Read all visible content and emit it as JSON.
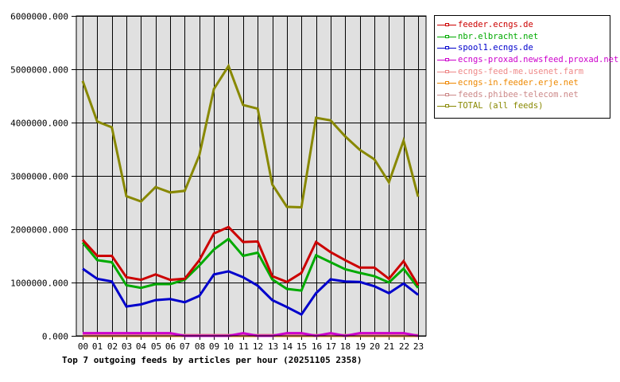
{
  "chart_data": {
    "type": "line",
    "title": "Top 7 outgoing feeds by articles per hour (20251105 2358)",
    "xlabel": "",
    "ylabel": "",
    "ylim": [
      0,
      6000000
    ],
    "grid": true,
    "legend_position": "right",
    "y_ticks": [
      "0.000",
      "1000000.000",
      "2000000.000",
      "3000000.000",
      "4000000.000",
      "5000000.000",
      "6000000.000"
    ],
    "categories": [
      "00",
      "01",
      "02",
      "03",
      "04",
      "05",
      "06",
      "07",
      "08",
      "09",
      "10",
      "11",
      "12",
      "13",
      "14",
      "15",
      "16",
      "17",
      "18",
      "19",
      "20",
      "21",
      "22",
      "23"
    ],
    "series": [
      {
        "name": "feeder.ecngs.de",
        "color": "#cc0000",
        "values": [
          1800000,
          1500000,
          1500000,
          1100000,
          1050000,
          1150000,
          1050000,
          1070000,
          1420000,
          1920000,
          2040000,
          1760000,
          1770000,
          1120000,
          1010000,
          1180000,
          1760000,
          1570000,
          1420000,
          1280000,
          1280000,
          1070000,
          1400000,
          950000
        ]
      },
      {
        "name": "nbr.elbracht.net",
        "color": "#00aa00",
        "values": [
          1750000,
          1420000,
          1380000,
          950000,
          900000,
          970000,
          970000,
          1050000,
          1320000,
          1620000,
          1820000,
          1500000,
          1560000,
          1060000,
          880000,
          850000,
          1510000,
          1380000,
          1250000,
          1180000,
          1120000,
          1000000,
          1260000,
          900000
        ]
      },
      {
        "name": "spool1.ecngs.de",
        "color": "#0000cc",
        "values": [
          1260000,
          1070000,
          1020000,
          550000,
          590000,
          670000,
          690000,
          630000,
          750000,
          1150000,
          1210000,
          1100000,
          940000,
          670000,
          540000,
          400000,
          800000,
          1060000,
          1020000,
          1010000,
          930000,
          800000,
          980000,
          770000
        ]
      },
      {
        "name": "ecngs-proxad.newsfeed.proxad.net",
        "color": "#cc00cc",
        "values": [
          50000,
          50000,
          50000,
          50000,
          50000,
          50000,
          50000,
          0,
          0,
          0,
          0,
          50000,
          0,
          0,
          50000,
          50000,
          0,
          50000,
          0,
          50000,
          50000,
          50000,
          50000,
          0
        ]
      },
      {
        "name": "ecngs-feed-me.usenet.farm",
        "color": "#ee8888",
        "values": [
          10000,
          10000,
          10000,
          10000,
          10000,
          10000,
          10000,
          10000,
          10000,
          10000,
          10000,
          10000,
          10000,
          10000,
          10000,
          10000,
          10000,
          10000,
          10000,
          10000,
          10000,
          10000,
          10000,
          10000
        ]
      },
      {
        "name": "ecngs-in.feeder.erje.net",
        "color": "#ee8800",
        "values": [
          0,
          0,
          0,
          0,
          0,
          0,
          0,
          0,
          0,
          0,
          0,
          0,
          0,
          0,
          0,
          0,
          0,
          0,
          0,
          0,
          0,
          0,
          0,
          0
        ]
      },
      {
        "name": "feeds.phibee-telecom.net",
        "color": "#cc8888",
        "values": [
          15000,
          15000,
          15000,
          15000,
          15000,
          15000,
          15000,
          15000,
          15000,
          15000,
          15000,
          15000,
          15000,
          15000,
          15000,
          15000,
          15000,
          15000,
          15000,
          15000,
          15000,
          15000,
          15000,
          15000
        ]
      },
      {
        "name": "TOTAL (all feeds)",
        "color": "#888800",
        "values": [
          4780000,
          4020000,
          3910000,
          2620000,
          2520000,
          2790000,
          2690000,
          2720000,
          3390000,
          4630000,
          5060000,
          4330000,
          4260000,
          2840000,
          2420000,
          2410000,
          4090000,
          4040000,
          3740000,
          3490000,
          3310000,
          2880000,
          3660000,
          2610000
        ]
      }
    ]
  },
  "legend": {
    "items": [
      {
        "label": "feeder.ecngs.de",
        "color": "#cc0000"
      },
      {
        "label": "nbr.elbracht.net",
        "color": "#00aa00"
      },
      {
        "label": "spool1.ecngs.de",
        "color": "#0000cc"
      },
      {
        "label": "ecngs-proxad.newsfeed.proxad.net",
        "color": "#cc00cc"
      },
      {
        "label": "ecngs-feed-me.usenet.farm",
        "color": "#ee8888"
      },
      {
        "label": "ecngs-in.feeder.erje.net",
        "color": "#ee8800"
      },
      {
        "label": "feeds.phibee-telecom.net",
        "color": "#cc8888"
      },
      {
        "label": "TOTAL (all feeds)",
        "color": "#888800"
      }
    ]
  },
  "colors": {
    "plot_background": "#e0e0e0",
    "grid": "#000000"
  }
}
